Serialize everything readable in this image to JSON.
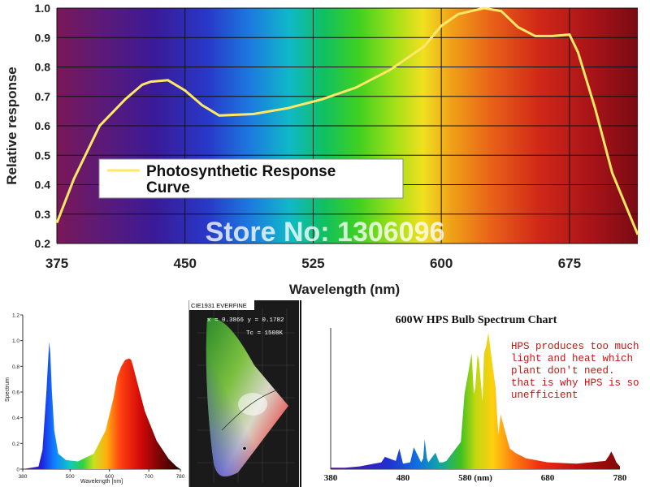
{
  "chart_data": [
    {
      "type": "line",
      "xlabel": "Wavelength (nm)",
      "ylabel": "Relative response",
      "xlim": [
        375,
        715
      ],
      "ylim": [
        0.2,
        1.0
      ],
      "x_ticks": [
        "375",
        "450",
        "525",
        "600",
        "675"
      ],
      "y_ticks": [
        "0.2",
        "0.3",
        "0.4",
        "0.5",
        "0.6",
        "0.7",
        "0.8",
        "0.9",
        "1.0"
      ],
      "grid": true,
      "legend": {
        "position": "left-center",
        "entries": [
          "Photosynthetic Response",
          "Curve"
        ]
      },
      "watermark": "Store No: 1306096",
      "series": [
        {
          "name": "Photosynthetic Response Curve",
          "color": "#ffe866",
          "x": [
            375,
            385,
            400,
            415,
            425,
            430,
            440,
            450,
            460,
            470,
            490,
            510,
            530,
            550,
            570,
            590,
            600,
            610,
            625,
            635,
            645,
            655,
            665,
            675,
            680,
            690,
            700,
            710,
            715
          ],
          "y": [
            0.27,
            0.42,
            0.6,
            0.69,
            0.74,
            0.75,
            0.755,
            0.72,
            0.67,
            0.635,
            0.64,
            0.66,
            0.69,
            0.73,
            0.79,
            0.87,
            0.94,
            0.98,
            1.0,
            0.99,
            0.935,
            0.905,
            0.905,
            0.91,
            0.85,
            0.66,
            0.44,
            0.3,
            0.23
          ]
        }
      ]
    },
    {
      "type": "area",
      "xlabel": "Wavelength [nm]",
      "ylabel": "Spectrum",
      "xlim": [
        380,
        780
      ],
      "ylim": [
        0,
        1.2
      ],
      "x_ticks": [
        "380",
        "500",
        "600",
        "700",
        "780"
      ],
      "y_ticks": [
        "0",
        "0.2",
        "0.4",
        "0.6",
        "0.8",
        "1.0",
        "1.2"
      ],
      "series": [
        {
          "x": [
            380,
            420,
            430,
            440,
            447,
            450,
            454,
            460,
            470,
            490,
            520,
            560,
            590,
            610,
            620,
            630,
            640,
            650,
            655,
            660,
            670,
            690,
            720,
            750,
            770,
            780
          ],
          "y": [
            0,
            0.02,
            0.15,
            0.6,
            0.99,
            0.9,
            0.6,
            0.3,
            0.12,
            0.07,
            0.06,
            0.12,
            0.3,
            0.55,
            0.72,
            0.8,
            0.85,
            0.86,
            0.85,
            0.8,
            0.68,
            0.45,
            0.22,
            0.08,
            0.02,
            0
          ]
        }
      ]
    },
    {
      "type": "scatter",
      "title": "CIE1931 EVERFINE",
      "annotations": [
        "x = 0.3866 y = 0.1782",
        "Tc = 1508K"
      ],
      "xlim": [
        0,
        0.8
      ],
      "ylim": [
        0,
        0.9
      ],
      "series": [
        {
          "name": "chromaticity point",
          "x": [
            0.3866
          ],
          "y": [
            0.1782
          ]
        }
      ]
    },
    {
      "type": "area",
      "title": "600W HPS Bulb Spectrum Chart",
      "annotation": "HPS produces too much light and heat which plant don't need. that is why HPS is so unefficient",
      "xlim": [
        380,
        780
      ],
      "x_ticks": [
        "380",
        "480",
        "580 (nm)",
        "680",
        "780"
      ],
      "series": [
        {
          "x": [
            380,
            400,
            420,
            440,
            450,
            455,
            470,
            475,
            480,
            490,
            495,
            505,
            508,
            510,
            513,
            515,
            525,
            530,
            535,
            540,
            560,
            565,
            570,
            575,
            578,
            580,
            583,
            585,
            590,
            592,
            595,
            598,
            600,
            604,
            608,
            610,
            612,
            615,
            620,
            625,
            628,
            635,
            650,
            680,
            720,
            760,
            765,
            768,
            771,
            775,
            780
          ],
          "y": [
            0.01,
            0.01,
            0.02,
            0.04,
            0.05,
            0.09,
            0.06,
            0.15,
            0.04,
            0.05,
            0.16,
            0.05,
            0.08,
            0.22,
            0.08,
            0.05,
            0.12,
            0.05,
            0.05,
            0.06,
            0.2,
            0.55,
            0.7,
            0.85,
            0.55,
            0.6,
            0.84,
            0.8,
            0.5,
            0.85,
            0.9,
            1.0,
            0.92,
            0.75,
            0.6,
            0.4,
            0.25,
            0.4,
            0.3,
            0.2,
            0.15,
            0.12,
            0.08,
            0.05,
            0.04,
            0.06,
            0.1,
            0.13,
            0.1,
            0.05,
            0.02
          ]
        }
      ]
    }
  ],
  "colors": {
    "curve": "#ffe866",
    "grid_dark": "#111111",
    "hps_text": "#cc1111"
  }
}
